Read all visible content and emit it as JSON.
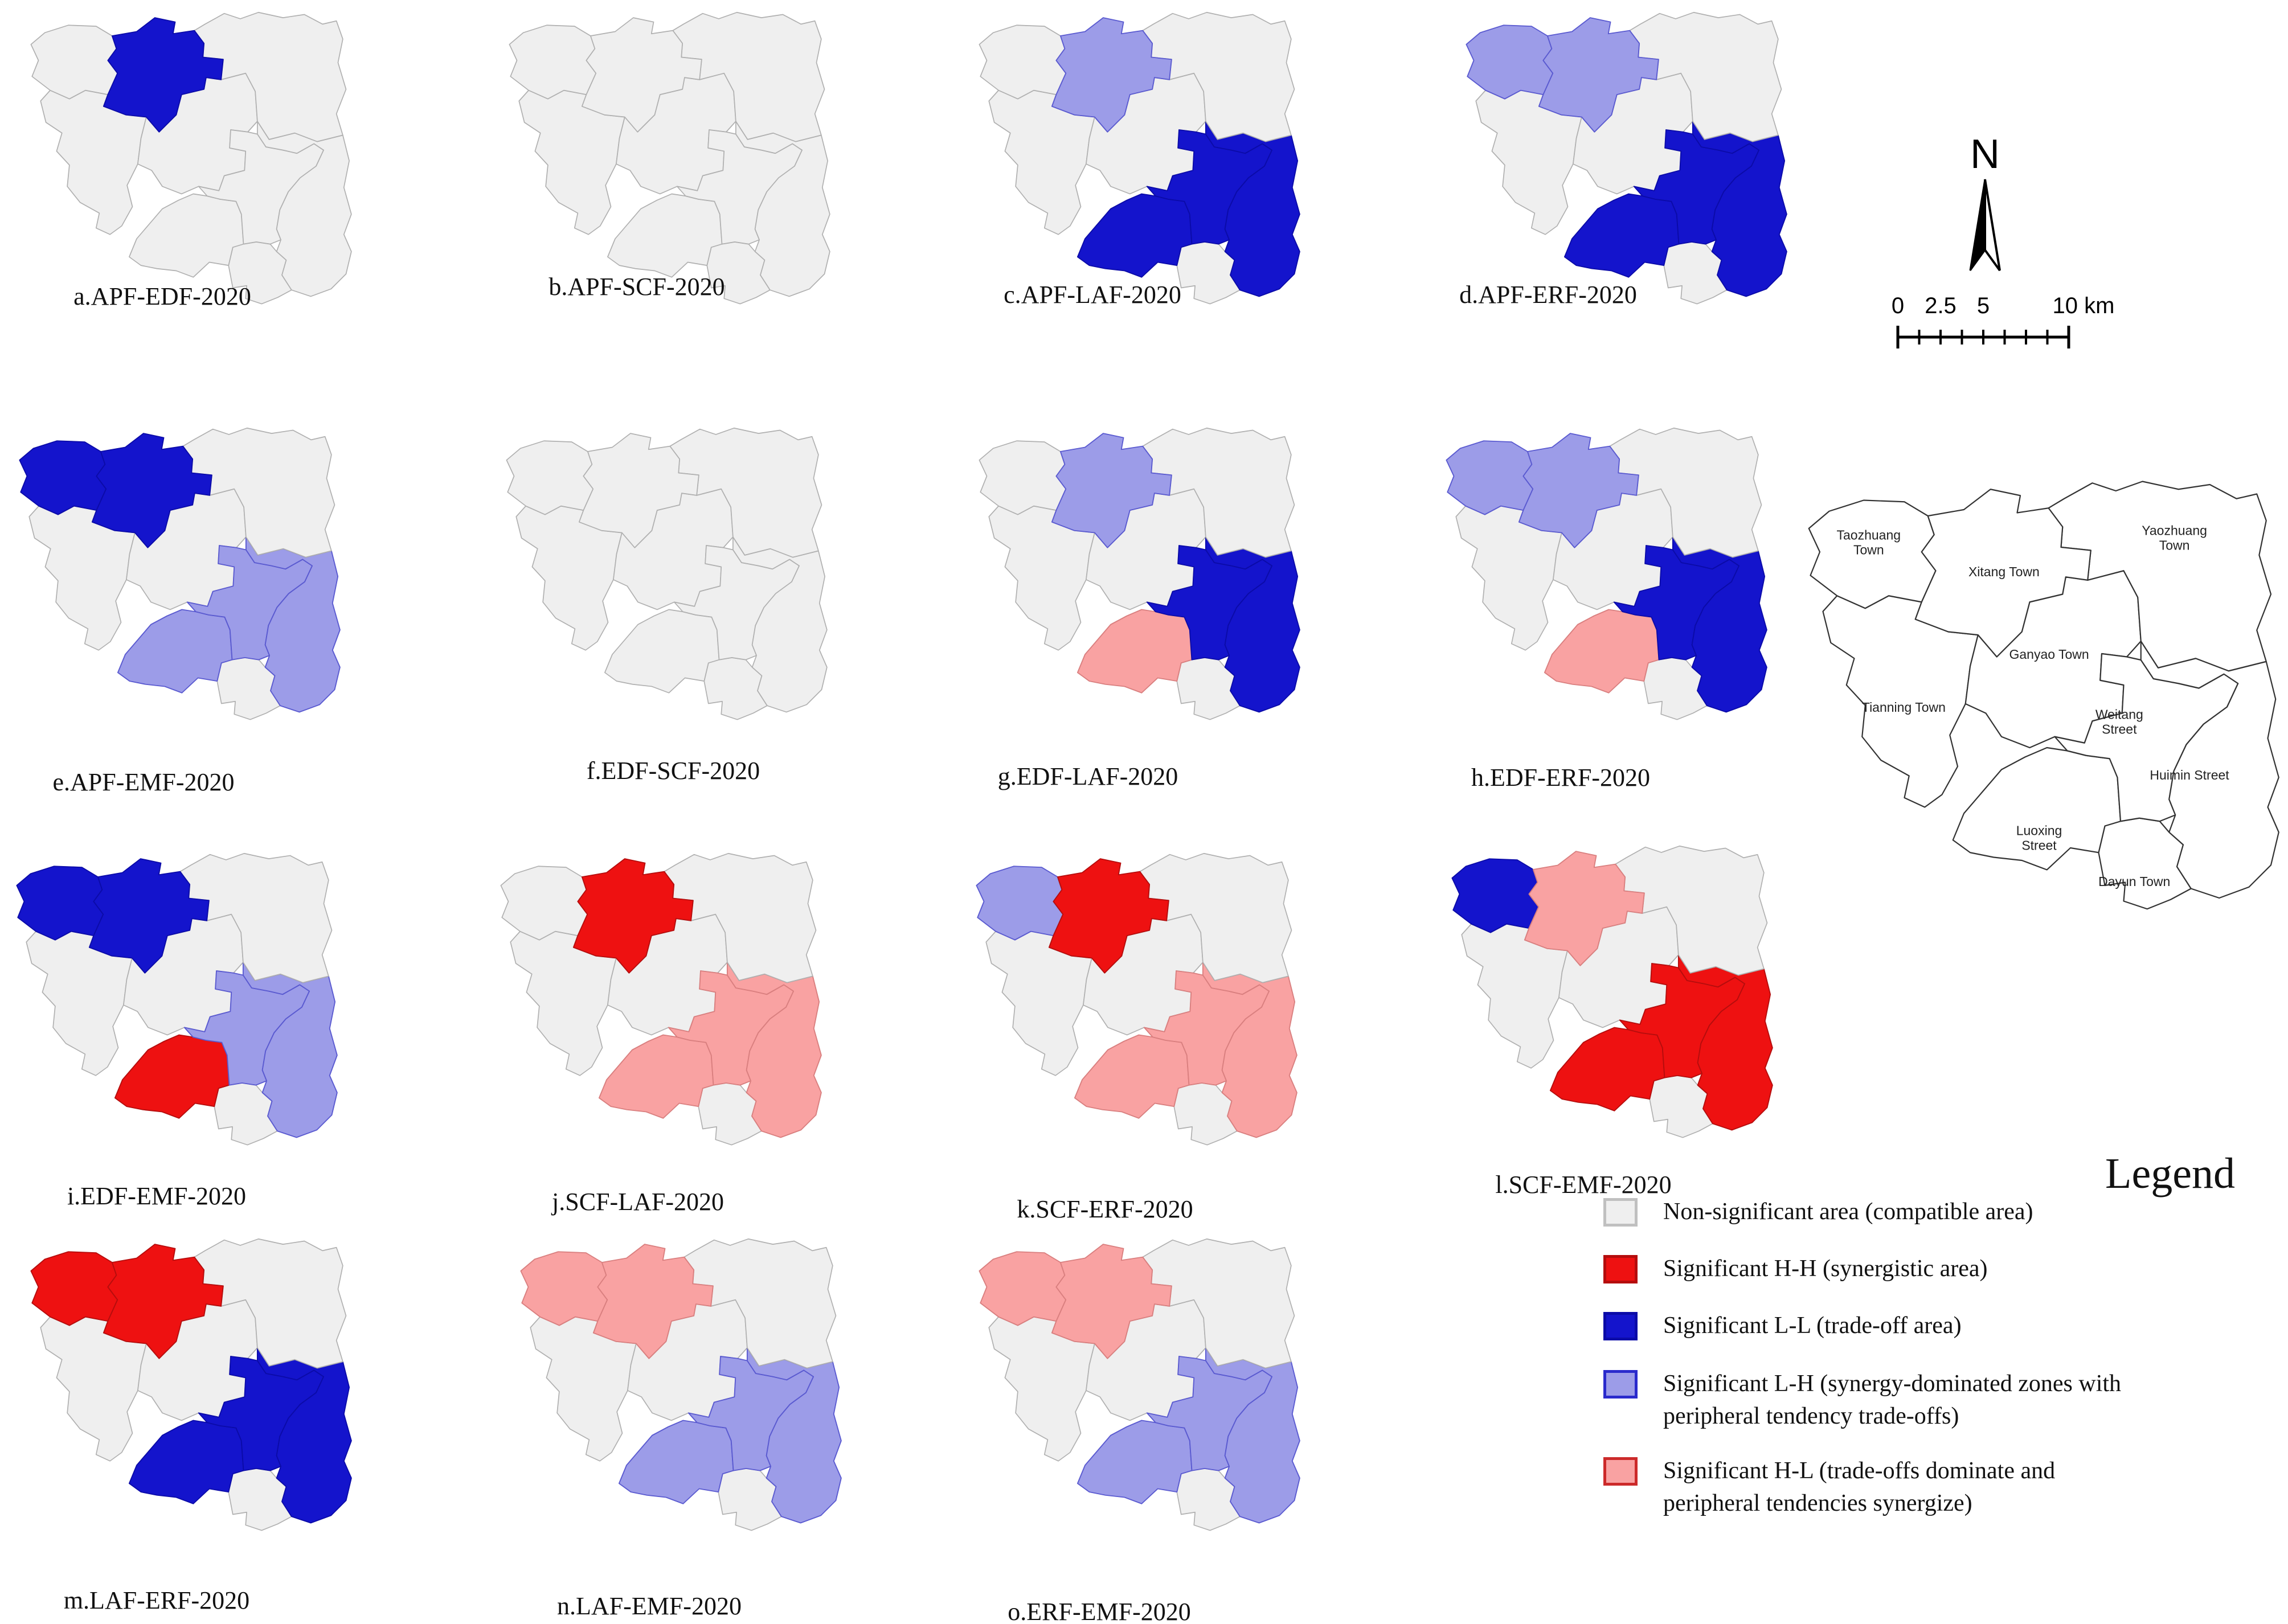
{
  "colors": {
    "non_significant": "#efefef",
    "hh": "#ee1111",
    "ll": "#1414cc",
    "lh": "#9c9ce8",
    "hl": "#f9a2a2",
    "ns_border": "#b0b0b0",
    "hh_border": "#b50d0d",
    "ll_border": "#0b0ba8",
    "lh_border": "#5a5ad0",
    "hl_border": "#d97f7f",
    "ref_border": "#333333"
  },
  "panels": [
    {
      "id": "a",
      "label": "a.APF-EDF-2020",
      "regions": {
        "xitang": "ll"
      }
    },
    {
      "id": "b",
      "label": "b.APF-SCF-2020",
      "regions": {}
    },
    {
      "id": "c",
      "label": "c.APF-LAF-2020",
      "regions": {
        "xitang": "lh",
        "weitang": "ll",
        "huimin": "ll",
        "luoxing": "ll"
      }
    },
    {
      "id": "d",
      "label": "d.APF-ERF-2020",
      "regions": {
        "taozhuang": "lh",
        "xitang": "lh",
        "weitang": "ll",
        "huimin": "ll",
        "luoxing": "ll"
      }
    },
    {
      "id": "e",
      "label": "e.APF-EMF-2020",
      "regions": {
        "taozhuang": "ll",
        "xitang": "ll",
        "weitang": "lh",
        "huimin": "lh",
        "luoxing": "lh"
      }
    },
    {
      "id": "f",
      "label": "f.EDF-SCF-2020",
      "regions": {}
    },
    {
      "id": "g",
      "label": "g.EDF-LAF-2020",
      "regions": {
        "xitang": "lh",
        "weitang": "ll",
        "huimin": "ll",
        "luoxing": "hl"
      }
    },
    {
      "id": "h",
      "label": "h.EDF-ERF-2020",
      "regions": {
        "taozhuang": "lh",
        "xitang": "lh",
        "weitang": "ll",
        "huimin": "ll",
        "luoxing": "hl"
      }
    },
    {
      "id": "i",
      "label": "i.EDF-EMF-2020",
      "regions": {
        "taozhuang": "ll",
        "xitang": "ll",
        "weitang": "lh",
        "huimin": "lh",
        "luoxing": "hh"
      }
    },
    {
      "id": "j",
      "label": "j.SCF-LAF-2020",
      "regions": {
        "xitang": "hh",
        "weitang": "hl",
        "huimin": "hl",
        "luoxing": "hl"
      }
    },
    {
      "id": "k",
      "label": "k.SCF-ERF-2020",
      "regions": {
        "taozhuang": "lh",
        "xitang": "hh",
        "weitang": "hl",
        "huimin": "hl",
        "luoxing": "hl"
      }
    },
    {
      "id": "l",
      "label": "l.SCF-EMF-2020",
      "regions": {
        "taozhuang": "ll",
        "xitang": "hl",
        "weitang": "hh",
        "huimin": "hh",
        "luoxing": "hh"
      }
    },
    {
      "id": "m",
      "label": "m.LAF-ERF-2020",
      "regions": {
        "taozhuang": "hh",
        "xitang": "hh",
        "weitang": "ll",
        "huimin": "ll",
        "luoxing": "ll"
      }
    },
    {
      "id": "n",
      "label": "n.LAF-EMF-2020",
      "regions": {
        "taozhuang": "hl",
        "xitang": "hl",
        "weitang": "lh",
        "huimin": "lh",
        "luoxing": "lh"
      }
    },
    {
      "id": "o",
      "label": "o.ERF-EMF-2020",
      "regions": {
        "taozhuang": "hl",
        "xitang": "hl",
        "weitang": "lh",
        "huimin": "lh",
        "luoxing": "lh"
      }
    }
  ],
  "reference_map": {
    "towns": [
      {
        "name": "Taozhuang Town"
      },
      {
        "name": "Xitang Town"
      },
      {
        "name": "Yaozhuang Town"
      },
      {
        "name": "Tianning Town"
      },
      {
        "name": "Ganyao Town"
      },
      {
        "name": "Weitang Street"
      },
      {
        "name": "Huimin Street"
      },
      {
        "name": "Luoxing Street"
      },
      {
        "name": "Dayun Town"
      }
    ]
  },
  "north_arrow": {
    "label": "N"
  },
  "scale_bar": {
    "labels": [
      "0",
      "2.5",
      "5",
      "10 km"
    ]
  },
  "legend": {
    "title": "Legend",
    "items": [
      {
        "key": "non_significant",
        "label": "Non-significant area (compatible area)"
      },
      {
        "key": "hh",
        "label": "Significant H-H (synergistic area)"
      },
      {
        "key": "ll",
        "label": "Significant L-L (trade-off area)"
      },
      {
        "key": "lh",
        "label": "Significant L-H (synergy-dominated zones with peripheral tendency trade-offs)"
      },
      {
        "key": "hl",
        "label": "Significant H-L (trade-offs dominate and peripheral tendencies synergize)"
      }
    ]
  }
}
